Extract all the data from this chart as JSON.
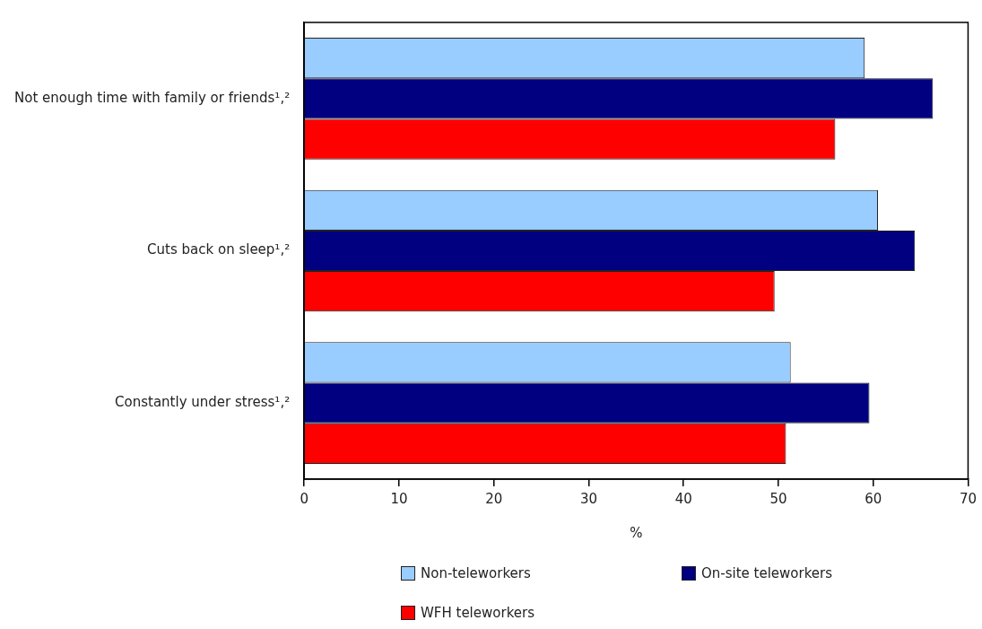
{
  "chart_data": {
    "type": "bar",
    "orientation": "horizontal",
    "xlabel": "%",
    "categories": [
      "Not enough time with family or friends¹,²",
      "Cuts back on sleep¹,²",
      "Constantly under stress¹,²"
    ],
    "series": [
      {
        "name": "Non-teleworkers",
        "color": "#99ccff",
        "values": [
          59.1,
          60.5,
          51.3
        ]
      },
      {
        "name": "On-site teleworkers",
        "color": "#000080",
        "values": [
          66.3,
          64.4,
          59.6
        ]
      },
      {
        "name": "WFH teleworkers",
        "color": "#ff0000",
        "values": [
          56.0,
          49.6,
          50.8
        ]
      }
    ],
    "xlim": [
      0,
      70
    ],
    "xticks": [
      0,
      10,
      20,
      30,
      40,
      50,
      60,
      70
    ],
    "grid": false,
    "legend": "bottom"
  }
}
